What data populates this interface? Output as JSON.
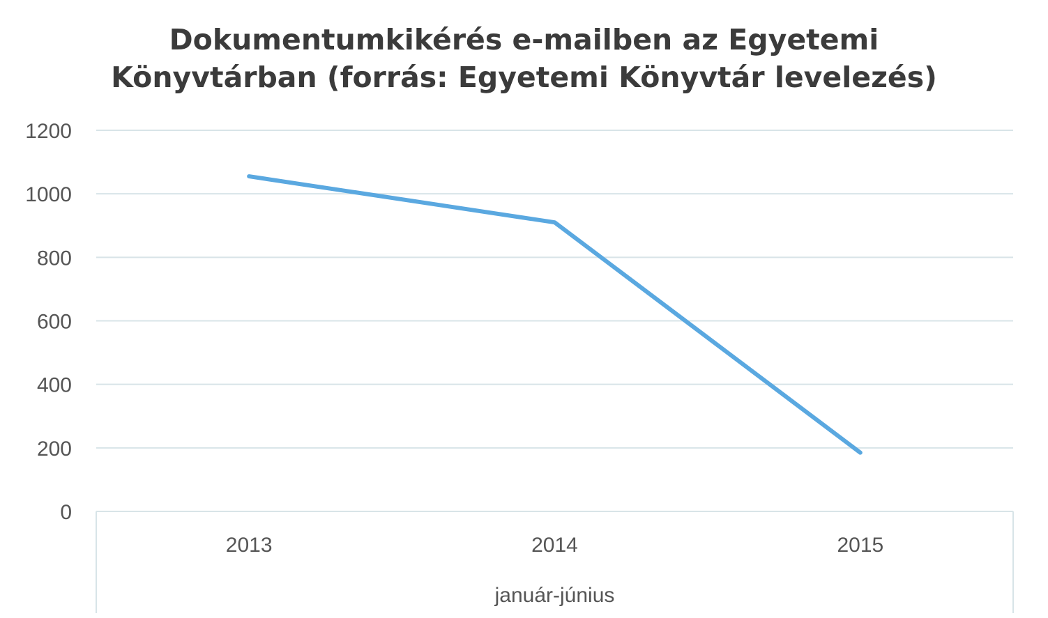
{
  "chart_data": {
    "type": "line",
    "title_lines": [
      "Dokumentumkikérés e-mailben az Egyetemi",
      "Könyvtárban (forrás: Egyetemi Könyvtár levelezés)"
    ],
    "categories": [
      "2013",
      "2014",
      "2015"
    ],
    "series": [
      {
        "values": [
          1055,
          910,
          185
        ],
        "color": "#5aa8e0"
      }
    ],
    "xlabel": "január-június",
    "ylabel": "",
    "ylim": [
      0,
      1200
    ],
    "yticks": [
      0,
      200,
      400,
      600,
      800,
      1000,
      1200
    ],
    "grid": true,
    "legend": "none",
    "gridline_color": "#d8e4e8"
  }
}
